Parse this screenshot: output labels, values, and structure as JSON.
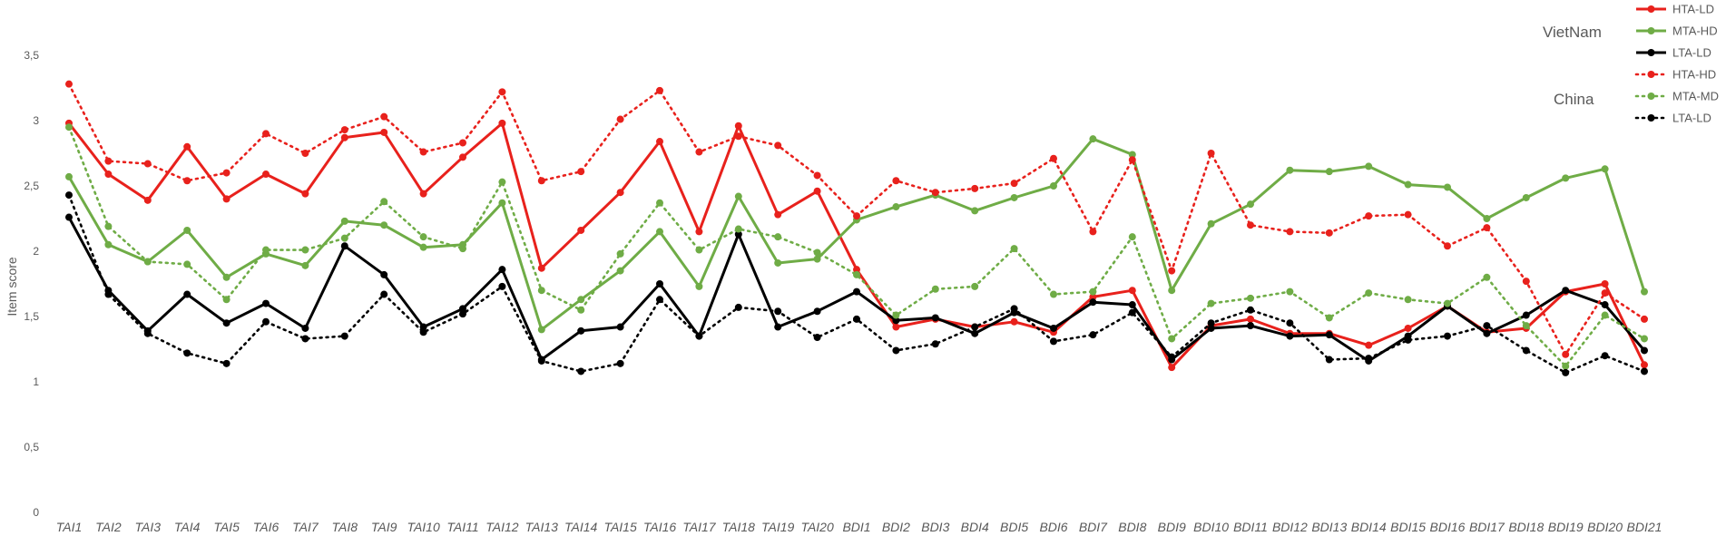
{
  "chart_data": {
    "type": "line",
    "title": "",
    "xlabel": "",
    "ylabel": "Item score",
    "ylim": [
      0,
      3.5
    ],
    "yticks": [
      {
        "value": 0,
        "label": "0"
      },
      {
        "value": 0.5,
        "label": "0,5"
      },
      {
        "value": 1,
        "label": "1"
      },
      {
        "value": 1.5,
        "label": "1,5"
      },
      {
        "value": 2,
        "label": "2"
      },
      {
        "value": 2.5,
        "label": "2,5"
      },
      {
        "value": 3,
        "label": "3"
      },
      {
        "value": 3.5,
        "label": "3,5"
      }
    ],
    "grid": false,
    "legend_position": "top-right",
    "group_labels": [
      {
        "text": "VietNam"
      },
      {
        "text": "China"
      }
    ],
    "categories": [
      "TAI1",
      "TAI2",
      "TAI3",
      "TAI4",
      "TAI5",
      "TAI6",
      "TAI7",
      "TAI8",
      "TAI9",
      "TAI10",
      "TAI11",
      "TAI12",
      "TAI13",
      "TAI14",
      "TAI15",
      "TAI16",
      "TAI17",
      "TAI18",
      "TAI19",
      "TAI20",
      "BDI1",
      "BDI2",
      "BDI3",
      "BDI4",
      "BDI5",
      "BDI6",
      "BDI7",
      "BDI8",
      "BDI9",
      "BDI10",
      "BDI11",
      "BDI12",
      "BDI13",
      "BDI14",
      "BDI15",
      "BDI16",
      "BDI17",
      "BDI18",
      "BDI19",
      "BDI20",
      "BDI21"
    ],
    "series": [
      {
        "name": "HTA-LD",
        "color": "#e8211c",
        "style": "solid",
        "values": [
          2.98,
          2.59,
          2.39,
          2.8,
          2.4,
          2.59,
          2.44,
          2.87,
          2.91,
          2.44,
          2.72,
          2.98,
          1.87,
          2.16,
          2.45,
          2.84,
          2.15,
          2.96,
          2.28,
          2.46,
          1.86,
          1.42,
          1.48,
          1.42,
          1.46,
          1.38,
          1.65,
          1.7,
          1.11,
          1.43,
          1.48,
          1.37,
          1.37,
          1.28,
          1.41,
          1.58,
          1.38,
          1.41,
          1.69,
          1.75,
          1.13
        ]
      },
      {
        "name": "MTA-HD",
        "color": "#6fac46",
        "style": "solid",
        "values": [
          2.57,
          2.05,
          1.92,
          2.16,
          1.8,
          1.98,
          1.89,
          2.23,
          2.2,
          2.03,
          2.05,
          2.37,
          1.4,
          1.63,
          1.85,
          2.15,
          1.73,
          2.42,
          1.91,
          1.94,
          2.24,
          2.34,
          2.43,
          2.31,
          2.41,
          2.5,
          2.86,
          2.74,
          1.7,
          2.21,
          2.36,
          2.62,
          2.61,
          2.65,
          2.51,
          2.49,
          2.25,
          2.41,
          2.56,
          2.63,
          1.69
        ]
      },
      {
        "name": "LTA-LD",
        "color": "#000000",
        "style": "solid",
        "values": [
          2.26,
          1.7,
          1.39,
          1.67,
          1.45,
          1.6,
          1.41,
          2.04,
          1.82,
          1.42,
          1.56,
          1.86,
          1.17,
          1.39,
          1.42,
          1.75,
          1.35,
          2.13,
          1.42,
          1.54,
          1.69,
          1.47,
          1.49,
          1.37,
          1.53,
          1.41,
          1.61,
          1.59,
          1.17,
          1.41,
          1.43,
          1.35,
          1.36,
          1.16,
          1.35,
          1.58,
          1.37,
          1.51,
          1.7,
          1.59,
          1.24
        ]
      },
      {
        "name": "HTA-HD",
        "color": "#e8211c",
        "style": "dotted",
        "values": [
          3.28,
          2.69,
          2.67,
          2.54,
          2.6,
          2.9,
          2.75,
          2.93,
          3.03,
          2.76,
          2.83,
          3.22,
          2.54,
          2.61,
          3.01,
          3.23,
          2.76,
          2.88,
          2.81,
          2.58,
          2.27,
          2.54,
          2.45,
          2.48,
          2.52,
          2.71,
          2.15,
          2.7,
          1.85,
          2.75,
          2.2,
          2.15,
          2.14,
          2.27,
          2.28,
          2.04,
          2.18,
          1.77,
          1.21,
          1.68,
          1.48
        ]
      },
      {
        "name": "MTA-MD",
        "color": "#6fac46",
        "style": "dotted",
        "values": [
          2.95,
          2.19,
          1.92,
          1.9,
          1.63,
          2.01,
          2.01,
          2.1,
          2.38,
          2.11,
          2.02,
          2.53,
          1.7,
          1.55,
          1.98,
          2.37,
          2.01,
          2.17,
          2.11,
          1.99,
          1.82,
          1.51,
          1.71,
          1.73,
          2.02,
          1.67,
          1.69,
          2.11,
          1.33,
          1.6,
          1.64,
          1.69,
          1.49,
          1.68,
          1.63,
          1.6,
          1.8,
          1.43,
          1.12,
          1.51,
          1.33
        ]
      },
      {
        "name": "LTA-LD",
        "color": "#000000",
        "style": "dotted",
        "values": [
          2.43,
          1.67,
          1.37,
          1.22,
          1.14,
          1.46,
          1.33,
          1.35,
          1.67,
          1.38,
          1.52,
          1.73,
          1.16,
          1.08,
          1.14,
          1.63,
          1.35,
          1.57,
          1.54,
          1.34,
          1.48,
          1.24,
          1.29,
          1.42,
          1.56,
          1.31,
          1.36,
          1.53,
          1.19,
          1.45,
          1.55,
          1.45,
          1.17,
          1.18,
          1.32,
          1.35,
          1.43,
          1.24,
          1.07,
          1.2,
          1.08
        ]
      }
    ]
  }
}
